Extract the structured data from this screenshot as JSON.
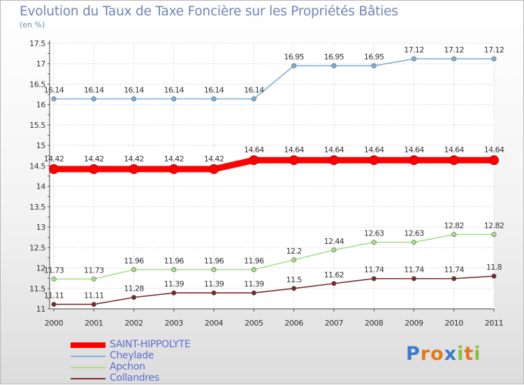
{
  "chart_data": {
    "type": "line",
    "title": "Evolution du Taux de Taxe Foncière sur les Propriétés Bâties",
    "ylabel": "(en %)",
    "xlabel": "",
    "categories": [
      "2000",
      "2001",
      "2002",
      "2003",
      "2004",
      "2005",
      "2006",
      "2007",
      "2008",
      "2009",
      "2010",
      "2011"
    ],
    "ylim": [
      11,
      17.5
    ],
    "yticks": [
      "11",
      "11.5",
      "12",
      "12.5",
      "13",
      "13.5",
      "14",
      "14.5",
      "15",
      "15.5",
      "16",
      "16.5",
      "17",
      "17.5"
    ],
    "grid": true,
    "legend_position": "bottom-left",
    "series": [
      {
        "name": "SAINT-HIPPOLYTE",
        "color": "#ff0000",
        "values": [
          14.42,
          14.42,
          14.42,
          14.42,
          14.42,
          14.64,
          14.64,
          14.64,
          14.64,
          14.64,
          14.64,
          14.64
        ],
        "labels": [
          "14.42",
          "14.42",
          "14.42",
          "14.42",
          "14.42",
          "14.64",
          "14.64",
          "14.64",
          "14.64",
          "14.64",
          "14.64",
          "14.64"
        ]
      },
      {
        "name": "Cheylade",
        "color": "#7fb0d8",
        "values": [
          16.14,
          16.14,
          16.14,
          16.14,
          16.14,
          16.14,
          16.95,
          16.95,
          16.95,
          17.12,
          17.12,
          17.12
        ],
        "labels": [
          "16.14",
          "16.14",
          "16.14",
          "16.14",
          "16.14",
          "16.14",
          "16.95",
          "16.95",
          "16.95",
          "17.12",
          "17.12",
          "17.12"
        ]
      },
      {
        "name": "Apchon",
        "color": "#a8e08a",
        "values": [
          11.73,
          11.73,
          11.96,
          11.96,
          11.96,
          11.96,
          12.2,
          12.44,
          12.63,
          12.63,
          12.82,
          12.82
        ],
        "labels": [
          "11.73",
          "11.73",
          "11.96",
          "11.96",
          "11.96",
          "11.96",
          "12.2",
          "12.44",
          "12.63",
          "12.63",
          "12.82",
          "12.82"
        ]
      },
      {
        "name": "Collandres",
        "color": "#7a2a2a",
        "values": [
          11.11,
          11.11,
          11.28,
          11.39,
          11.39,
          11.39,
          11.5,
          11.62,
          11.74,
          11.74,
          11.74,
          11.8
        ],
        "labels": [
          "11.11",
          "11.11",
          "11.28",
          "11.39",
          "11.39",
          "11.39",
          "11.5",
          "11.62",
          "11.74",
          "11.74",
          "11.74",
          "11.8"
        ]
      }
    ]
  },
  "logo": {
    "text": "Proxiti",
    "letters": [
      "P",
      "r",
      "o",
      "x",
      "i",
      "t",
      "i"
    ],
    "colors": [
      "#3a7ad0",
      "#e07a1a",
      "#e07a1a",
      "#3a7ad0",
      "#88c040",
      "#e07a1a",
      "#88c040"
    ]
  }
}
